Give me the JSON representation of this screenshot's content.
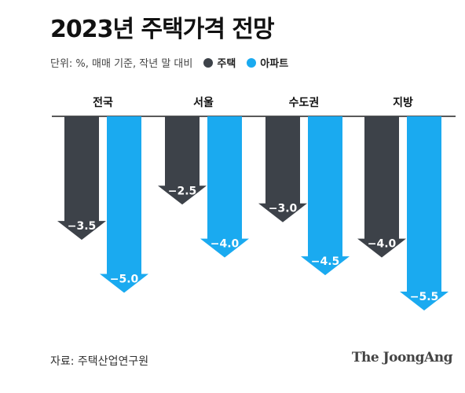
{
  "title": "2023년 주택가격 전망",
  "unit_note": "단위: %, 매매 기준, 작년 말 대비",
  "source": "자료: 주택산업연구원",
  "brand": "The JoongAng",
  "colors": {
    "housing": "#3d4249",
    "apartment": "#1aaaf0"
  },
  "chart_data": {
    "type": "bar",
    "categories": [
      "전국",
      "서울",
      "수도권",
      "지방"
    ],
    "series": [
      {
        "name": "주택",
        "values": [
          -3.5,
          -2.5,
          -3.0,
          -4.0
        ],
        "labels": [
          "−3.5",
          "−2.5",
          "−3.0",
          "−4.0"
        ]
      },
      {
        "name": "아파트",
        "values": [
          -5.0,
          -4.0,
          -4.5,
          -5.5
        ],
        "labels": [
          "−5.0",
          "−4.0",
          "−4.5",
          "−5.5"
        ]
      }
    ],
    "ylim": [
      -5.5,
      0
    ],
    "legend": "top",
    "grid": false
  }
}
